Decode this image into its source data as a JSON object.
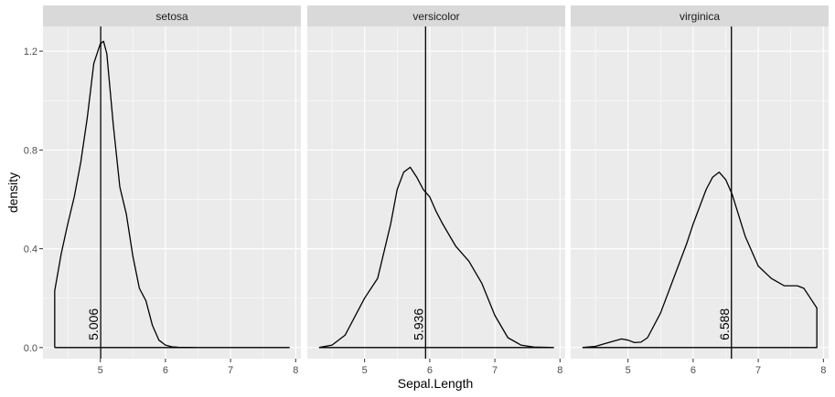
{
  "chart_data": {
    "type": "area",
    "xlabel": "Sepal.Length",
    "ylabel": "density",
    "xlim": [
      4.12,
      8.08
    ],
    "ylim": [
      -0.045,
      1.3
    ],
    "x_ticks": [
      5,
      6,
      7,
      8
    ],
    "y_ticks": [
      0.0,
      0.4,
      0.8,
      1.2
    ],
    "y_tick_labels": [
      "0.0",
      "0.4",
      "0.8",
      "1.2"
    ],
    "grid": true,
    "panel_background": "#ebebeb",
    "strip_background": "#d9d9d9",
    "grid_color": "#ffffff",
    "line_color": "#000000",
    "panels": [
      {
        "strip": "setosa",
        "mean": 5.006,
        "mean_label": "5.006",
        "x": [
          4.3,
          4.3,
          4.4,
          4.5,
          4.6,
          4.7,
          4.8,
          4.9,
          5.0,
          5.05,
          5.1,
          5.2,
          5.3,
          5.4,
          5.5,
          5.6,
          5.7,
          5.8,
          5.9,
          6.0,
          6.1,
          6.2,
          6.5,
          7.0,
          7.5,
          7.9
        ],
        "y": [
          0.0,
          0.23,
          0.38,
          0.5,
          0.61,
          0.75,
          0.93,
          1.15,
          1.23,
          1.24,
          1.19,
          0.9,
          0.65,
          0.54,
          0.37,
          0.24,
          0.19,
          0.09,
          0.03,
          0.01,
          0.003,
          0.001,
          0.0,
          0.0,
          0.0,
          0.0
        ]
      },
      {
        "strip": "versicolor",
        "mean": 5.936,
        "mean_label": "5.936",
        "x": [
          4.3,
          4.5,
          4.7,
          4.9,
          5.0,
          5.2,
          5.4,
          5.5,
          5.6,
          5.7,
          5.8,
          5.9,
          6.0,
          6.1,
          6.2,
          6.4,
          6.6,
          6.8,
          7.0,
          7.2,
          7.4,
          7.6,
          7.9
        ],
        "y": [
          0.0,
          0.01,
          0.05,
          0.15,
          0.2,
          0.28,
          0.5,
          0.64,
          0.71,
          0.73,
          0.69,
          0.64,
          0.61,
          0.55,
          0.5,
          0.41,
          0.35,
          0.26,
          0.13,
          0.04,
          0.01,
          0.002,
          0.0
        ]
      },
      {
        "strip": "virginica",
        "mean": 6.588,
        "mean_label": "6.588",
        "x": [
          4.3,
          4.5,
          4.7,
          4.9,
          5.0,
          5.1,
          5.2,
          5.3,
          5.5,
          5.7,
          5.9,
          6.0,
          6.2,
          6.3,
          6.4,
          6.5,
          6.6,
          6.8,
          7.0,
          7.2,
          7.4,
          7.6,
          7.7,
          7.8,
          7.9,
          7.9
        ],
        "y": [
          0.0,
          0.005,
          0.02,
          0.035,
          0.03,
          0.02,
          0.022,
          0.04,
          0.14,
          0.28,
          0.42,
          0.5,
          0.64,
          0.69,
          0.71,
          0.68,
          0.62,
          0.45,
          0.33,
          0.28,
          0.25,
          0.25,
          0.24,
          0.2,
          0.16,
          0.0
        ]
      }
    ]
  }
}
